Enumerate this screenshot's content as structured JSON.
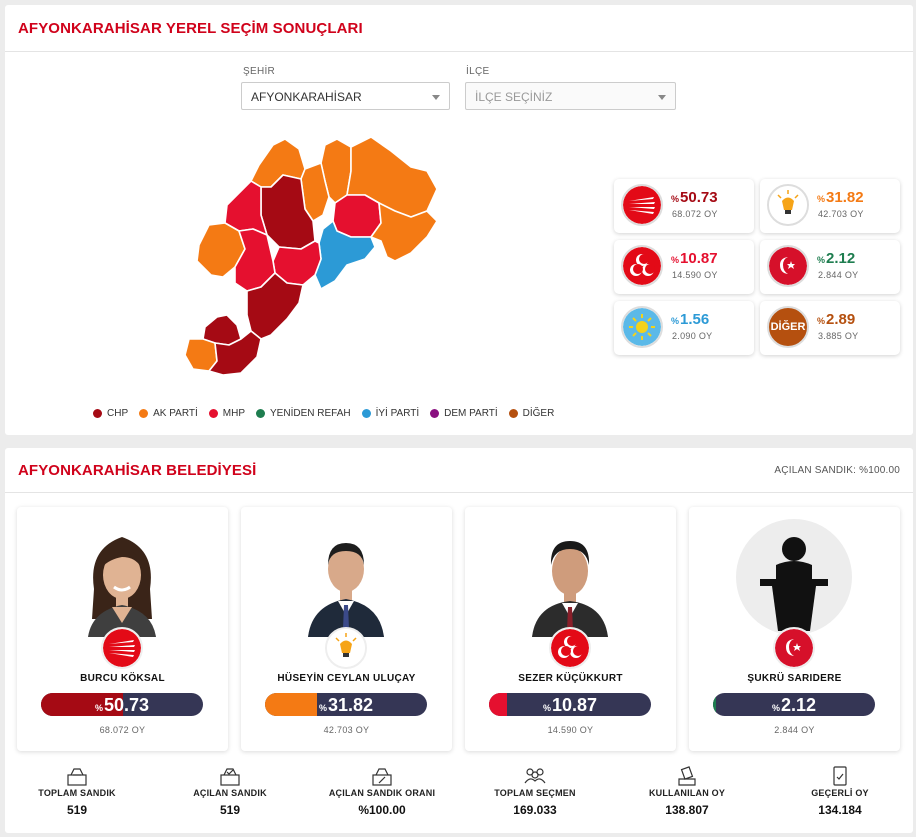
{
  "header": {
    "title": "AFYONKARAHİSAR YEREL SEÇİM SONUÇLARI"
  },
  "filters": {
    "city": {
      "label": "ŞEHİR",
      "value": "AFYONKARAHİSAR"
    },
    "district": {
      "label": "İLÇE",
      "placeholder": "İLÇE SEÇİNİZ"
    }
  },
  "legend": [
    {
      "label": "CHP",
      "color": "#a50a14"
    },
    {
      "label": "AK PARTİ",
      "color": "#f47a14"
    },
    {
      "label": "MHP",
      "color": "#e5102f"
    },
    {
      "label": "YENİDEN REFAH",
      "color": "#1e7d4f"
    },
    {
      "label": "İYİ PARTİ",
      "color": "#2c9ad6"
    },
    {
      "label": "DEM PARTİ",
      "color": "#8a1080"
    },
    {
      "label": "DİĞER",
      "color": "#b5500f"
    }
  ],
  "party_results": [
    {
      "pct_sign": "%",
      "pct": "50.73",
      "votes": "68.072 OY",
      "color": "#a50a14",
      "logo": "chp-logo"
    },
    {
      "pct_sign": "%",
      "pct": "31.82",
      "votes": "42.703 OY",
      "color": "#f47a14",
      "logo": "akp-logo"
    },
    {
      "pct_sign": "%",
      "pct": "10.87",
      "votes": "14.590 OY",
      "color": "#e5102f",
      "logo": "mhp-logo"
    },
    {
      "pct_sign": "%",
      "pct": "2.12",
      "votes": "2.844 OY",
      "color": "#1e7d4f",
      "logo": "yeniden-refah-logo"
    },
    {
      "pct_sign": "%",
      "pct": "1.56",
      "votes": "2.090 OY",
      "color": "#2c9ad6",
      "logo": "iyi-logo"
    },
    {
      "pct_sign": "%",
      "pct": "2.89",
      "votes": "3.885 OY",
      "color": "#b5500f",
      "logo": "diger-logo",
      "logo_text": "DİĞER"
    }
  ],
  "municipality": {
    "title": "AFYONKARAHİSAR BELEDİYESİ",
    "opened_ballots": "AÇILAN SANDIK: %100.00",
    "candidates": [
      {
        "name": "BURCU KÖKSAL",
        "pct_sign": "%",
        "pct": "50.73",
        "share": 0.5073,
        "votes": "68.072 OY",
        "color": "#a50a14"
      },
      {
        "name": "HÜSEYİN CEYLAN ULUÇAY",
        "pct_sign": "%",
        "pct": "31.82",
        "share": 0.3182,
        "votes": "42.703 OY",
        "color": "#f47a14"
      },
      {
        "name": "SEZER KÜÇÜKKURT",
        "pct_sign": "%",
        "pct": "10.87",
        "share": 0.1087,
        "votes": "14.590 OY",
        "color": "#e5102f"
      },
      {
        "name": "ŞUKRÜ SARIDERE",
        "pct_sign": "%",
        "pct": "2.12",
        "share": 0.0212,
        "votes": "2.844 OY",
        "color": "#1e7d4f"
      }
    ],
    "stats": [
      {
        "label": "TOPLAM SANDIK",
        "value": "519",
        "icon": "ballot-box-icon"
      },
      {
        "label": "AÇILAN SANDIK",
        "value": "519",
        "icon": "opened-ballot-box-icon"
      },
      {
        "label": "AÇILAN SANDIK ORANI",
        "value": "%100.00",
        "icon": "ballot-box-percent-icon"
      },
      {
        "label": "TOPLAM SEÇMEN",
        "value": "169.033",
        "icon": "voters-icon"
      },
      {
        "label": "KULLANILAN OY",
        "value": "138.807",
        "icon": "cast-vote-icon"
      },
      {
        "label": "GEÇERLİ OY",
        "value": "134.184",
        "icon": "valid-vote-icon"
      }
    ]
  }
}
